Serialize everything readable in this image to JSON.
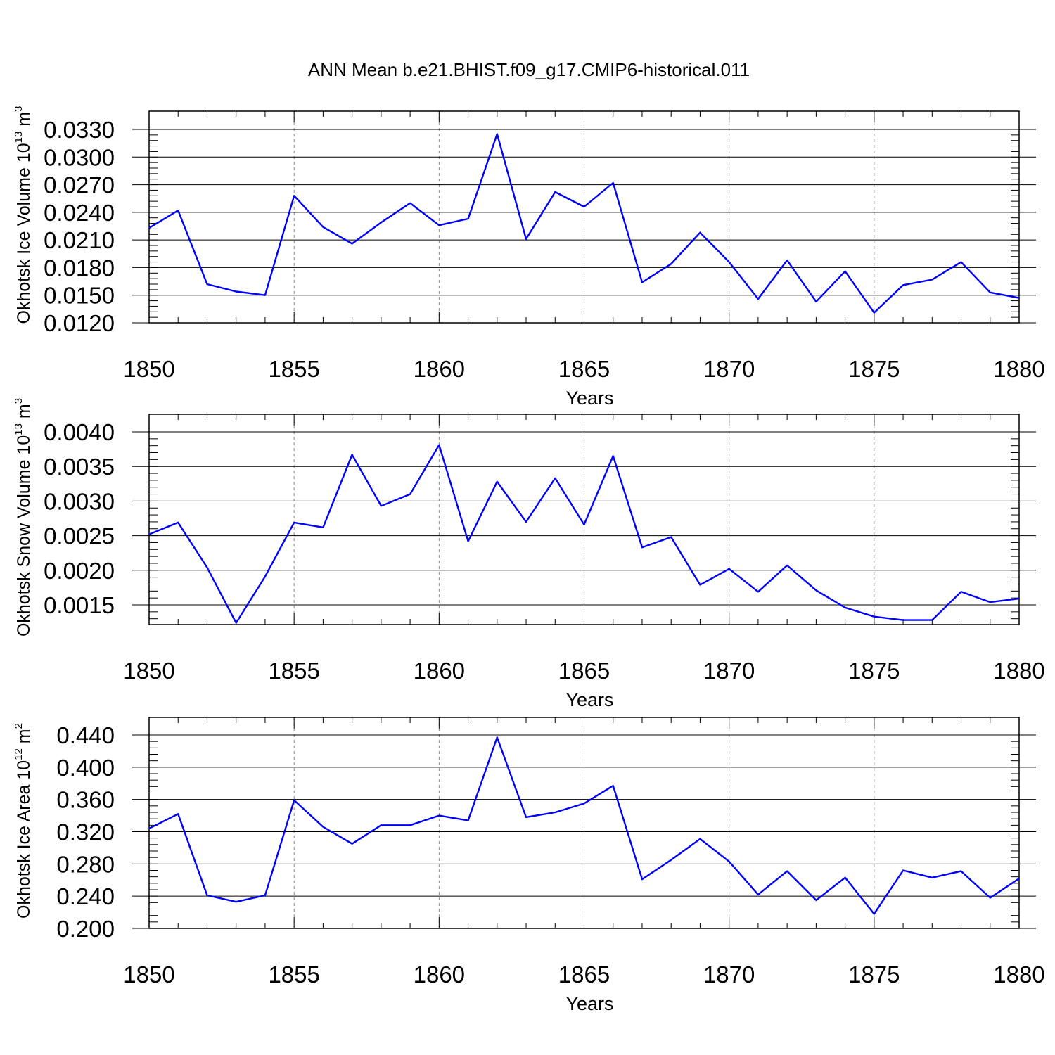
{
  "title": "ANN Mean b.e21.BHIST.f09_g17.CMIP6-historical.011",
  "line_color": "#0000ff",
  "chart_data": [
    {
      "type": "line",
      "xlabel": "Years",
      "ylabel": "Okhotsk Ice Volume 10",
      "ylabel_exp": "13",
      "ylabel_unit": " m",
      "ylabel_unit_exp": "3",
      "xlim": [
        1850,
        1880
      ],
      "ylim": [
        0.012,
        0.033
      ],
      "xticks": [
        "1850",
        "1855",
        "1860",
        "1865",
        "1870",
        "1875",
        "1880"
      ],
      "yticks": [
        "0.0120",
        "0.0150",
        "0.0180",
        "0.0210",
        "0.0240",
        "0.0270",
        "0.0300",
        "0.0330"
      ],
      "x": [
        1850,
        1851,
        1852,
        1853,
        1854,
        1855,
        1856,
        1857,
        1858,
        1859,
        1860,
        1861,
        1862,
        1863,
        1864,
        1865,
        1866,
        1867,
        1868,
        1869,
        1870,
        1871,
        1872,
        1873,
        1874,
        1875,
        1876,
        1877,
        1878,
        1879,
        1880
      ],
      "values": [
        0.0223,
        0.0242,
        0.0162,
        0.0154,
        0.015,
        0.0258,
        0.0224,
        0.0206,
        0.0229,
        0.025,
        0.0226,
        0.0233,
        0.0325,
        0.0211,
        0.0262,
        0.0246,
        0.0272,
        0.0164,
        0.0184,
        0.0218,
        0.0186,
        0.0146,
        0.0188,
        0.0143,
        0.0176,
        0.0131,
        0.0161,
        0.0167,
        0.0186,
        0.0153,
        0.0147
      ]
    },
    {
      "type": "line",
      "xlabel": "Years",
      "ylabel": "Okhotsk Snow Volume 10",
      "ylabel_exp": "13",
      "ylabel_unit": " m",
      "ylabel_unit_exp": "3",
      "xlim": [
        1850,
        1880
      ],
      "ylim": [
        0.00122,
        0.00404
      ],
      "xticks": [
        "1850",
        "1855",
        "1860",
        "1865",
        "1870",
        "1875",
        "1880"
      ],
      "yticks": [
        "0.0015",
        "0.0020",
        "0.0025",
        "0.0030",
        "0.0035",
        "0.0040"
      ],
      "x": [
        1850,
        1851,
        1852,
        1853,
        1854,
        1855,
        1856,
        1857,
        1858,
        1859,
        1860,
        1861,
        1862,
        1863,
        1864,
        1865,
        1866,
        1867,
        1868,
        1869,
        1870,
        1871,
        1872,
        1873,
        1874,
        1875,
        1876,
        1877,
        1878,
        1879,
        1880
      ],
      "values": [
        0.00252,
        0.00269,
        0.00204,
        0.00124,
        0.00191,
        0.00269,
        0.00262,
        0.00367,
        0.00293,
        0.0031,
        0.00381,
        0.00242,
        0.00328,
        0.0027,
        0.00333,
        0.00266,
        0.00365,
        0.00233,
        0.00248,
        0.00179,
        0.00202,
        0.00169,
        0.00207,
        0.00171,
        0.00146,
        0.00133,
        0.00128,
        0.00128,
        0.00169,
        0.00154,
        0.00159
      ]
    },
    {
      "type": "line",
      "xlabel": "Years",
      "ylabel": "Okhotsk Ice Area 10",
      "ylabel_exp": "12",
      "ylabel_unit": " m",
      "ylabel_unit_exp": "2",
      "xlim": [
        1850,
        1880
      ],
      "ylim": [
        0.2,
        0.44
      ],
      "xticks": [
        "1850",
        "1855",
        "1860",
        "1865",
        "1870",
        "1875",
        "1880"
      ],
      "yticks": [
        "0.200",
        "0.240",
        "0.280",
        "0.320",
        "0.360",
        "0.400",
        "0.440"
      ],
      "x": [
        1850,
        1851,
        1852,
        1853,
        1854,
        1855,
        1856,
        1857,
        1858,
        1859,
        1860,
        1861,
        1862,
        1863,
        1864,
        1865,
        1866,
        1867,
        1868,
        1869,
        1870,
        1871,
        1872,
        1873,
        1874,
        1875,
        1876,
        1877,
        1878,
        1879,
        1880
      ],
      "values": [
        0.324,
        0.342,
        0.241,
        0.233,
        0.241,
        0.359,
        0.326,
        0.305,
        0.328,
        0.328,
        0.34,
        0.334,
        0.437,
        0.338,
        0.344,
        0.355,
        0.377,
        0.261,
        0.285,
        0.311,
        0.283,
        0.242,
        0.271,
        0.235,
        0.263,
        0.218,
        0.272,
        0.263,
        0.271,
        0.238,
        0.262
      ]
    }
  ]
}
